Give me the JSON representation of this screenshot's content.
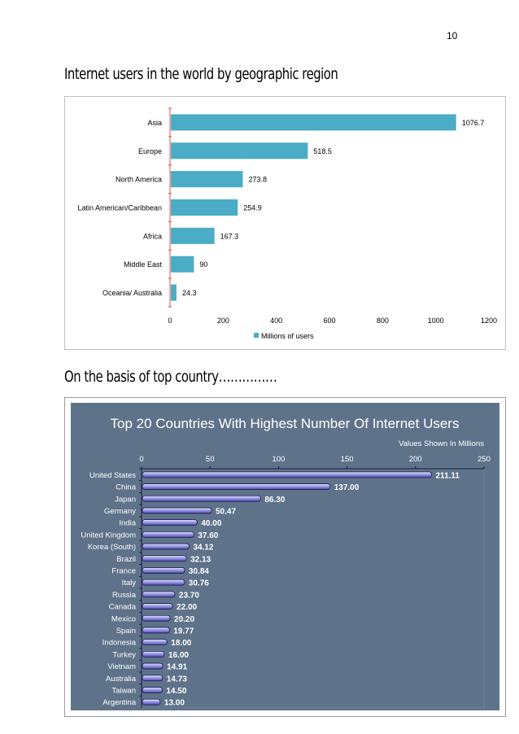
{
  "page": {
    "number": "10",
    "heading_regions": "Internet users in the world by geographic region",
    "heading_countries": "On the basis of top country……………"
  },
  "colors": {
    "region_bar": "#4bacc6",
    "country_panel": "#5e7389",
    "country_bar": "#8b8bdf",
    "country_bar_edge": "#1a1a4a",
    "axis_red": "#d9534f"
  },
  "chart_data": [
    {
      "type": "bar",
      "orientation": "horizontal",
      "categories": [
        "Asia",
        "Europe",
        "North America",
        "Latin American/Caribbean",
        "Africa",
        "Middle East",
        "Oceania/ Australia"
      ],
      "values": [
        1076.7,
        518.5,
        273.8,
        254.9,
        167.3,
        90,
        24.3
      ],
      "value_labels": [
        "1076.7",
        "518.5",
        "273.8",
        "254.9",
        "167.3",
        "90",
        "24.3"
      ],
      "xlim": [
        0,
        1200
      ],
      "xticks": [
        "0",
        "200",
        "400",
        "600",
        "800",
        "1000",
        "1200"
      ],
      "legend": "Millions of users",
      "legend_position": "bottom",
      "grid": false
    },
    {
      "type": "bar",
      "orientation": "horizontal",
      "title": "Top 20 Countries With Highest Number Of Internet Users",
      "subtitle": "Values Shown In Millions",
      "categories": [
        "United States",
        "China",
        "Japan",
        "Germany",
        "India",
        "United Kingdom",
        "Korea (South)",
        "Brazil",
        "France",
        "Italy",
        "Russia",
        "Canada",
        "Mexico",
        "Spain",
        "Indonesia",
        "Turkey",
        "Vietnam",
        "Australia",
        "Taiwan",
        "Argentina"
      ],
      "values": [
        211.11,
        137.0,
        86.3,
        50.47,
        40.0,
        37.6,
        34.12,
        32.13,
        30.84,
        30.76,
        23.7,
        22.0,
        20.2,
        19.77,
        18.0,
        16.0,
        14.91,
        14.73,
        14.5,
        13.0
      ],
      "value_labels": [
        "211.11",
        "137.00",
        "86.30",
        "50.47",
        "40.00",
        "37.60",
        "34.12",
        "32.13",
        "30.84",
        "30.76",
        "23.70",
        "22.00",
        "20.20",
        "19.77",
        "18.00",
        "16.00",
        "14.91",
        "14.73",
        "14.50",
        "13.00"
      ],
      "xlim": [
        0,
        250
      ],
      "xticks": [
        "0",
        "50",
        "100",
        "150",
        "200",
        "250"
      ],
      "axis_position": "top",
      "grid": false
    }
  ]
}
